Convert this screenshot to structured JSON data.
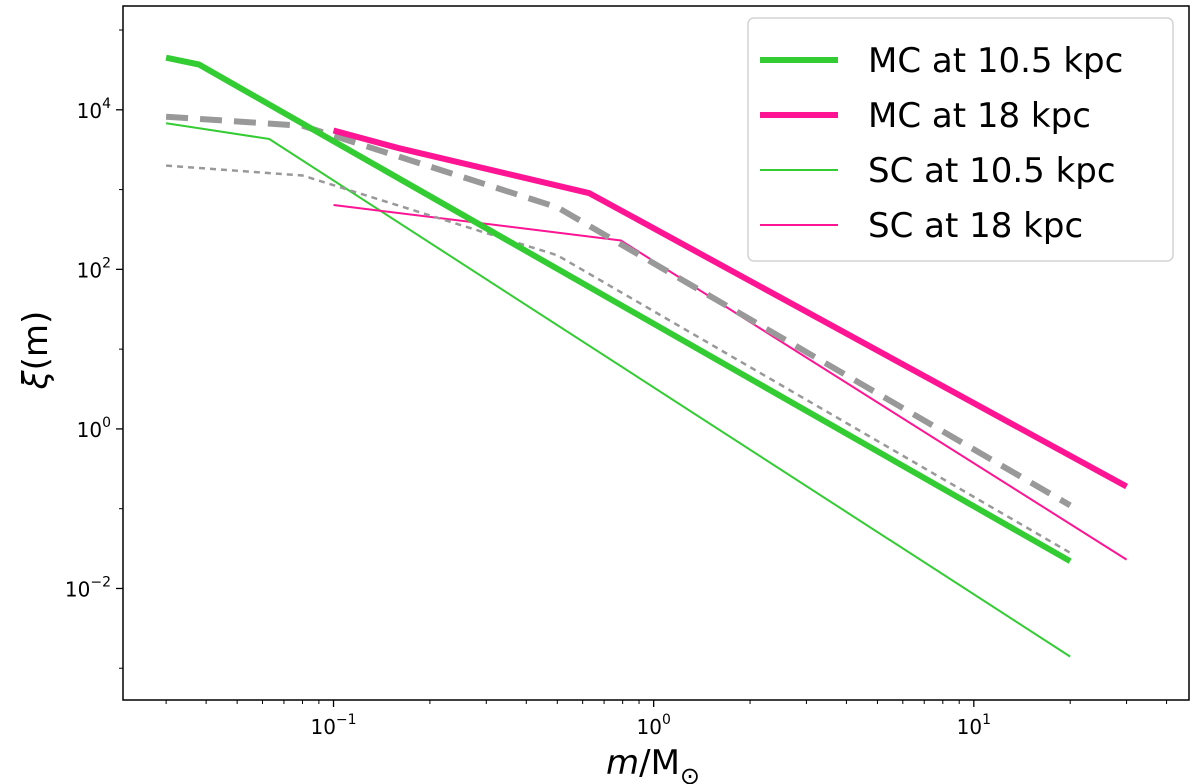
{
  "chart_data": {
    "type": "line",
    "xscale": "log",
    "yscale": "log",
    "xlim": [
      0.022,
      47
    ],
    "ylim": [
      0.0004,
      200000
    ],
    "xlabel_italic": "m",
    "xlabel_rest": "/M",
    "xlabel_sub": "⊙",
    "ylabel_italic": "ξ",
    "ylabel_rest": "(m)",
    "xticks": [
      {
        "value": 0.1,
        "base": "10",
        "exp": "−1"
      },
      {
        "value": 1,
        "base": "10",
        "exp": "0"
      },
      {
        "value": 10,
        "base": "10",
        "exp": "1"
      }
    ],
    "yticks": [
      {
        "value": 0.01,
        "base": "10",
        "exp": "−2"
      },
      {
        "value": 1,
        "base": "10",
        "exp": "0"
      },
      {
        "value": 100,
        "base": "10",
        "exp": "2"
      },
      {
        "value": 10000,
        "base": "10",
        "exp": "4"
      }
    ],
    "series": [
      {
        "name": "SC at 10.5 kpc",
        "color": "#33cc33",
        "width": 2,
        "dash": "",
        "legend": true,
        "points": [
          [
            0.03,
            6800
          ],
          [
            0.063,
            4300
          ],
          [
            20,
            0.0014
          ]
        ]
      },
      {
        "name": "SC at 18 kpc",
        "color": "#ff1493",
        "width": 2,
        "dash": "",
        "legend": true,
        "points": [
          [
            0.1,
            640
          ],
          [
            0.79,
            230
          ],
          [
            30,
            0.023
          ]
        ]
      },
      {
        "name": "reference-thin-dashed",
        "color": "#999999",
        "width": 2.5,
        "dash": "6,5",
        "legend": false,
        "points": [
          [
            0.03,
            2000
          ],
          [
            0.08,
            1500
          ],
          [
            0.5,
            150
          ],
          [
            20,
            0.028
          ]
        ]
      },
      {
        "name": "reference-thick-dashed",
        "color": "#999999",
        "width": 6,
        "dash": "22,12",
        "legend": false,
        "points": [
          [
            0.03,
            8200
          ],
          [
            0.08,
            6300
          ],
          [
            0.5,
            600
          ],
          [
            20,
            0.11
          ]
        ]
      },
      {
        "name": "MC at 10.5 kpc",
        "color": "#33cc33",
        "width": 6,
        "dash": "",
        "legend": true,
        "points": [
          [
            0.03,
            45000
          ],
          [
            0.038,
            37000
          ],
          [
            20,
            0.022
          ]
        ]
      },
      {
        "name": "MC at 18 kpc",
        "color": "#ff1493",
        "width": 6,
        "dash": "",
        "legend": true,
        "points": [
          [
            0.1,
            5500
          ],
          [
            0.16,
            3300
          ],
          [
            0.63,
            900
          ],
          [
            30,
            0.19
          ]
        ]
      }
    ],
    "legend": {
      "placement": "top-right",
      "entries": [
        {
          "label": "MC at 10.5 kpc",
          "color": "#33cc33",
          "width": 6
        },
        {
          "label": "MC at 18 kpc",
          "color": "#ff1493",
          "width": 6
        },
        {
          "label": "SC at 10.5 kpc",
          "color": "#33cc33",
          "width": 2
        },
        {
          "label": "SC at 18 kpc",
          "color": "#ff1493",
          "width": 2
        }
      ]
    }
  }
}
